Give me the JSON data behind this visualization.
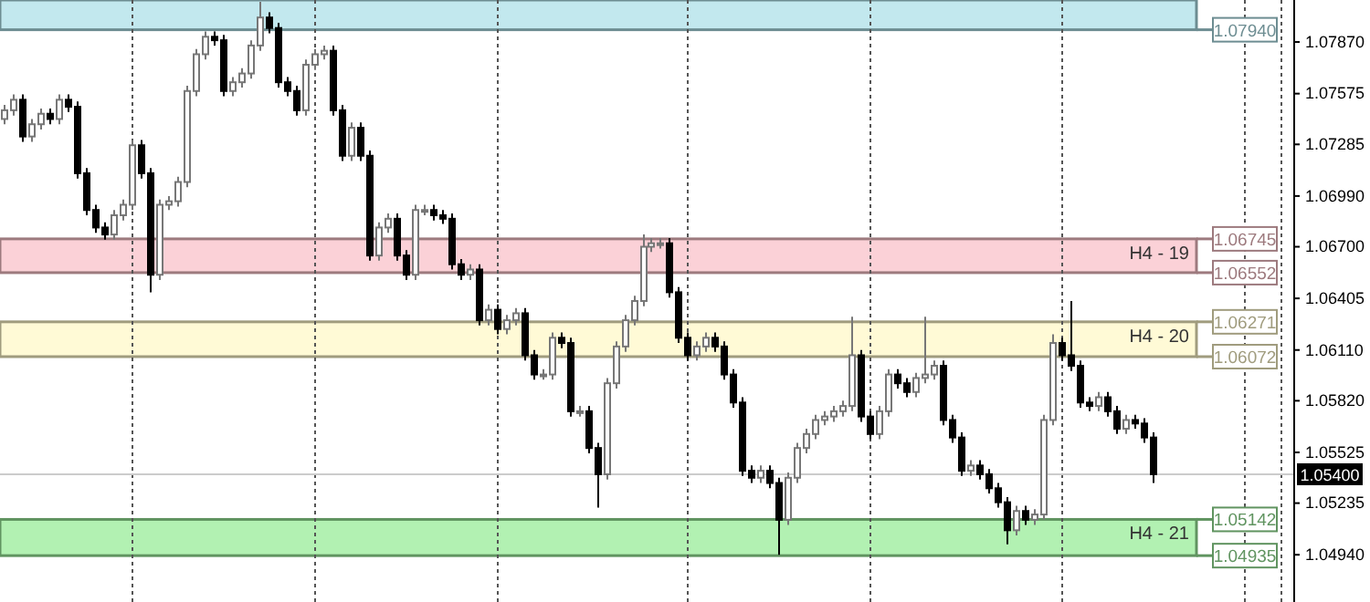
{
  "chart_data": {
    "type": "candlestick",
    "categories": [
      null,
      null,
      null,
      null,
      null,
      null,
      null,
      null,
      null,
      null,
      null,
      null,
      null,
      null,
      null,
      null,
      null,
      null,
      null,
      null,
      null,
      null,
      null,
      null,
      null,
      null,
      null,
      null,
      null,
      null,
      null,
      null,
      null,
      null,
      null,
      null,
      null,
      null,
      null,
      null,
      null,
      null,
      null,
      null,
      null,
      null,
      null,
      null,
      null,
      null,
      null,
      null,
      null,
      null,
      null,
      null,
      null,
      null,
      null,
      null,
      null,
      null,
      null,
      null,
      null,
      null,
      null,
      null,
      null,
      null,
      null,
      null,
      null,
      null,
      null,
      null,
      null,
      null,
      null,
      null,
      null,
      null,
      null,
      null,
      null,
      null,
      null,
      null,
      null,
      null,
      null,
      null,
      null,
      null,
      null,
      null,
      null,
      null,
      null,
      null,
      null,
      null,
      null,
      null,
      null,
      null,
      null,
      null,
      null,
      null,
      null,
      null,
      null,
      null,
      null,
      null,
      null,
      null,
      null,
      null,
      null,
      null,
      null,
      null,
      null,
      null,
      null,
      null,
      null,
      null,
      null,
      null,
      null,
      null,
      null,
      null,
      null,
      null,
      null,
      null,
      null,
      null
    ],
    "ohlc": [
      [
        1.0743,
        1.0751,
        1.074,
        1.0748
      ],
      [
        1.0748,
        1.0757,
        1.0745,
        1.0754
      ],
      [
        1.0754,
        1.0757,
        1.073,
        1.0733
      ],
      [
        1.0733,
        1.0743,
        1.073,
        1.074
      ],
      [
        1.074,
        1.0749,
        1.0737,
        1.0746
      ],
      [
        1.0746,
        1.0749,
        1.074,
        1.0743
      ],
      [
        1.0743,
        1.0757,
        1.074,
        1.0754
      ],
      [
        1.0754,
        1.0757,
        1.0747,
        1.075
      ],
      [
        1.075,
        1.0753,
        1.0709,
        1.0712
      ],
      [
        1.0712,
        1.0715,
        1.0688,
        1.0691
      ],
      [
        1.0691,
        1.0694,
        1.0678,
        1.0681
      ],
      [
        1.0681,
        1.0684,
        1.0674,
        1.0677
      ],
      [
        1.0677,
        1.0691,
        1.0674,
        1.0688
      ],
      [
        1.0688,
        1.0697,
        1.0685,
        1.0694
      ],
      [
        1.0694,
        1.0731,
        1.0691,
        1.0728
      ],
      [
        1.0728,
        1.0731,
        1.0709,
        1.0712
      ],
      [
        1.0712,
        1.0715,
        1.0644,
        1.0654
      ],
      [
        1.0654,
        1.0697,
        1.0651,
        1.0694
      ],
      [
        1.0694,
        1.0699,
        1.0691,
        1.0696
      ],
      [
        1.0696,
        1.071,
        1.0693,
        1.0707
      ],
      [
        1.0707,
        1.0762,
        1.0704,
        1.0759
      ],
      [
        1.0759,
        1.0783,
        1.0756,
        1.078
      ],
      [
        1.078,
        1.0793,
        1.0777,
        1.079
      ],
      [
        1.079,
        1.0793,
        1.0785,
        1.0788
      ],
      [
        1.0788,
        1.0791,
        1.0756,
        1.0759
      ],
      [
        1.0759,
        1.0767,
        1.0756,
        1.0764
      ],
      [
        1.0764,
        1.0772,
        1.0761,
        1.0769
      ],
      [
        1.0769,
        1.0788,
        1.0766,
        1.0785
      ],
      [
        1.0785,
        1.081,
        1.0782,
        1.0801
      ],
      [
        1.0801,
        1.0804,
        1.0792,
        1.0795
      ],
      [
        1.0795,
        1.0798,
        1.0761,
        1.0764
      ],
      [
        1.0764,
        1.0767,
        1.0756,
        1.0759
      ],
      [
        1.0759,
        1.0762,
        1.0745,
        1.0748
      ],
      [
        1.0748,
        1.0777,
        1.0745,
        1.0774
      ],
      [
        1.0774,
        1.0783,
        1.0771,
        1.078
      ],
      [
        1.078,
        1.0785,
        1.0777,
        1.0782
      ],
      [
        1.0782,
        1.0785,
        1.0745,
        1.0748
      ],
      [
        1.0748,
        1.0751,
        1.0719,
        1.0722
      ],
      [
        1.0722,
        1.0741,
        1.0719,
        1.0738
      ],
      [
        1.0738,
        1.0741,
        1.0719,
        1.0722
      ],
      [
        1.0722,
        1.0725,
        1.0662,
        1.0665
      ],
      [
        1.0665,
        1.0684,
        1.0662,
        1.0681
      ],
      [
        1.0681,
        1.0689,
        1.0678,
        1.0686
      ],
      [
        1.0686,
        1.0689,
        1.0662,
        1.0665
      ],
      [
        1.0665,
        1.0668,
        1.0651,
        1.0654
      ],
      [
        1.0654,
        1.0694,
        1.0651,
        1.0691
      ],
      [
        1.0691,
        1.0694,
        1.0688,
        1.0691
      ],
      [
        1.0691,
        1.0694,
        1.0685,
        1.0688
      ],
      [
        1.0688,
        1.0691,
        1.0683,
        1.0686
      ],
      [
        1.0686,
        1.0689,
        1.0657,
        1.066
      ],
      [
        1.066,
        1.0663,
        1.0651,
        1.0654
      ],
      [
        1.0654,
        1.066,
        1.0651,
        1.0657
      ],
      [
        1.0657,
        1.066,
        1.0625,
        1.0628
      ],
      [
        1.0628,
        1.0637,
        1.0625,
        1.0634
      ],
      [
        1.0634,
        1.0637,
        1.062,
        1.0623
      ],
      [
        1.0623,
        1.0631,
        1.062,
        1.0628
      ],
      [
        1.0628,
        1.0635,
        1.0625,
        1.0632
      ],
      [
        1.0632,
        1.0635,
        1.0605,
        1.0608
      ],
      [
        1.0608,
        1.0611,
        1.0594,
        1.0597
      ],
      [
        1.0597,
        1.06,
        1.0594,
        1.0597
      ],
      [
        1.0597,
        1.0621,
        1.0594,
        1.0618
      ],
      [
        1.0618,
        1.0621,
        1.0612,
        1.0615
      ],
      [
        1.0615,
        1.0618,
        1.0573,
        1.0576
      ],
      [
        1.0576,
        1.0579,
        1.0573,
        1.0576
      ],
      [
        1.0576,
        1.0579,
        1.0552,
        1.0555
      ],
      [
        1.0555,
        1.0558,
        1.0521,
        1.054
      ],
      [
        1.054,
        1.0595,
        1.0537,
        1.0592
      ],
      [
        1.0592,
        1.0616,
        1.0589,
        1.0613
      ],
      [
        1.0613,
        1.0631,
        1.061,
        1.0628
      ],
      [
        1.0628,
        1.0642,
        1.0625,
        1.0639
      ],
      [
        1.0639,
        1.0677,
        1.0636,
        1.067
      ],
      [
        1.067,
        1.0675,
        1.0667,
        1.0672
      ],
      [
        1.0672,
        1.0675,
        1.0669,
        1.0672
      ],
      [
        1.0672,
        1.0675,
        1.0641,
        1.0644
      ],
      [
        1.0644,
        1.0647,
        1.0615,
        1.0618
      ],
      [
        1.0618,
        1.0621,
        1.0605,
        1.0608
      ],
      [
        1.0608,
        1.0616,
        1.0605,
        1.0613
      ],
      [
        1.0613,
        1.0621,
        1.061,
        1.0618
      ],
      [
        1.0618,
        1.0621,
        1.061,
        1.0613
      ],
      [
        1.0613,
        1.0616,
        1.0594,
        1.0597
      ],
      [
        1.0597,
        1.06,
        1.0578,
        1.0581
      ],
      [
        1.0581,
        1.0584,
        1.0539,
        1.0542
      ],
      [
        1.0542,
        1.0545,
        1.0535,
        1.0538
      ],
      [
        1.0538,
        1.0545,
        1.0535,
        1.0542
      ],
      [
        1.0542,
        1.0545,
        1.0532,
        1.0535
      ],
      [
        1.0535,
        1.0538,
        1.0494,
        1.0514
      ],
      [
        1.0514,
        1.0541,
        1.0511,
        1.0538
      ],
      [
        1.0538,
        1.0558,
        1.0535,
        1.0555
      ],
      [
        1.0555,
        1.0566,
        1.0552,
        1.0563
      ],
      [
        1.0563,
        1.0574,
        1.056,
        1.0571
      ],
      [
        1.0571,
        1.0576,
        1.0568,
        1.0573
      ],
      [
        1.0573,
        1.0579,
        1.057,
        1.0576
      ],
      [
        1.0576,
        1.0582,
        1.0573,
        1.0579
      ],
      [
        1.0579,
        1.063,
        1.0576,
        1.0608
      ],
      [
        1.0608,
        1.0611,
        1.057,
        1.0573
      ],
      [
        1.0573,
        1.0576,
        1.056,
        1.0563
      ],
      [
        1.0563,
        1.0579,
        1.056,
        1.0576
      ],
      [
        1.0576,
        1.06,
        1.0573,
        1.0597
      ],
      [
        1.0597,
        1.06,
        1.0589,
        1.0592
      ],
      [
        1.0592,
        1.0595,
        1.0584,
        1.0587
      ],
      [
        1.0587,
        1.0598,
        1.0584,
        1.0595
      ],
      [
        1.0595,
        1.063,
        1.0592,
        1.0597
      ],
      [
        1.0597,
        1.0605,
        1.0594,
        1.0602
      ],
      [
        1.0602,
        1.0605,
        1.0568,
        1.0571
      ],
      [
        1.0571,
        1.0574,
        1.0558,
        1.0561
      ],
      [
        1.0561,
        1.0564,
        1.0539,
        1.0542
      ],
      [
        1.0542,
        1.0548,
        1.0539,
        1.0545
      ],
      [
        1.0545,
        1.0548,
        1.0537,
        1.054
      ],
      [
        1.054,
        1.0543,
        1.0529,
        1.0532
      ],
      [
        1.0532,
        1.0535,
        1.0521,
        1.0524
      ],
      [
        1.0524,
        1.0527,
        1.05,
        1.0508
      ],
      [
        1.0508,
        1.0522,
        1.0505,
        1.0519
      ],
      [
        1.0519,
        1.0522,
        1.0511,
        1.0514
      ],
      [
        1.0514,
        1.052,
        1.0511,
        1.0517
      ],
      [
        1.0517,
        1.0574,
        1.0514,
        1.0571
      ],
      [
        1.0571,
        1.062,
        1.0568,
        1.0615
      ],
      [
        1.0615,
        1.0618,
        1.0605,
        1.0608
      ],
      [
        1.0608,
        1.0639,
        1.0599,
        1.0602
      ],
      [
        1.0602,
        1.0605,
        1.0578,
        1.0581
      ],
      [
        1.0581,
        1.0584,
        1.0576,
        1.0579
      ],
      [
        1.0579,
        1.0587,
        1.0576,
        1.0584
      ],
      [
        1.0584,
        1.0587,
        1.0573,
        1.0576
      ],
      [
        1.0576,
        1.0579,
        1.0563,
        1.0566
      ],
      [
        1.0566,
        1.0574,
        1.0563,
        1.0571
      ],
      [
        1.0571,
        1.0574,
        1.0566,
        1.0569
      ],
      [
        1.0569,
        1.0572,
        1.0558,
        1.0561
      ],
      [
        1.0561,
        1.0564,
        1.0535,
        1.054
      ],
      null,
      null,
      null,
      null,
      null,
      null,
      null,
      null,
      null,
      null,
      null,
      null,
      null,
      null,
      null
    ],
    "ylim": [
      1.0467,
      1.0811
    ],
    "yticks": [
      {
        "value": 1.0787,
        "label": "1.07870"
      },
      {
        "value": 1.07575,
        "label": "1.07575"
      },
      {
        "value": 1.07285,
        "label": "1.07285"
      },
      {
        "value": 1.0699,
        "label": "1.06990"
      },
      {
        "value": 1.067,
        "label": "1.06700"
      },
      {
        "value": 1.06405,
        "label": "1.06405"
      },
      {
        "value": 1.0611,
        "label": "1.06110"
      },
      {
        "value": 1.0582,
        "label": "1.05820"
      },
      {
        "value": 1.05525,
        "label": "1.05525"
      },
      {
        "value": 1.05235,
        "label": "1.05235"
      },
      {
        "value": 1.0494,
        "label": "1.04940"
      }
    ],
    "bands": [
      {
        "axis": "y",
        "from": 1.0794,
        "to": 1.0811,
        "color": "#aee0e8"
      },
      {
        "axis": "y",
        "from": 1.06552,
        "to": 1.06745,
        "label": "H4 - 19",
        "color": "#f9c2c9"
      },
      {
        "axis": "y",
        "from": 1.06072,
        "to": 1.06271,
        "label": "H4 - 20",
        "color": "#fff8c8"
      },
      {
        "axis": "y",
        "from": 1.04935,
        "to": 1.05142,
        "label": "H4 - 21",
        "color": "#98ec98"
      }
    ],
    "ref_lines": [
      {
        "axis": "y",
        "value": 1.054,
        "label": "1.05400",
        "color": "#cccccc"
      }
    ],
    "annotations": [
      {
        "text": "1.07940",
        "y": 1.0794
      },
      {
        "text": "1.06745",
        "y": 1.06745
      },
      {
        "text": "1.06552",
        "y": 1.06552
      },
      {
        "text": "1.06271",
        "y": 1.06271
      },
      {
        "text": "1.06072",
        "y": 1.06072
      },
      {
        "text": "1.05142",
        "y": 1.05142
      },
      {
        "text": "1.04935",
        "y": 1.04935
      }
    ]
  }
}
